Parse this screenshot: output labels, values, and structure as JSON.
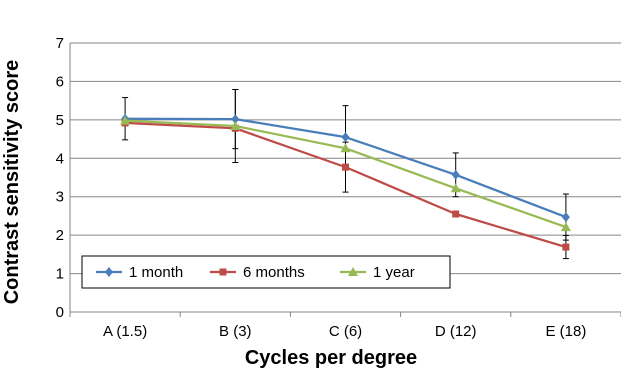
{
  "chart_data": {
    "type": "line",
    "xlabel": "Cycles per degree",
    "ylabel": "Contrast sensitivity score",
    "categories": [
      "A (1.5)",
      "B (3)",
      "C (6)",
      "D (12)",
      "E (18)"
    ],
    "ylim": [
      0,
      7
    ],
    "yticks": [
      0,
      1,
      2,
      3,
      4,
      5,
      6,
      7
    ],
    "grid": "horizontal",
    "legend_placement": "bottom-left",
    "series": [
      {
        "name": "1 month",
        "color": "#4A7EBB",
        "marker": "diamond",
        "values": [
          5.03,
          5.02,
          4.55,
          3.57,
          2.47
        ],
        "error": [
          0.55,
          0.77,
          0.82,
          0.57,
          0.6
        ]
      },
      {
        "name": "6 months",
        "color": "#BE4B48",
        "marker": "square",
        "values": [
          4.92,
          4.78,
          3.77,
          2.55,
          1.69
        ],
        "error": [
          null,
          null,
          0.65,
          null,
          0.3
        ]
      },
      {
        "name": "1 year",
        "color": "#98B954",
        "marker": "triangle",
        "values": [
          4.98,
          4.84,
          4.26,
          3.22,
          2.21
        ],
        "error": [
          null,
          0.95,
          null,
          null,
          null
        ]
      }
    ]
  }
}
